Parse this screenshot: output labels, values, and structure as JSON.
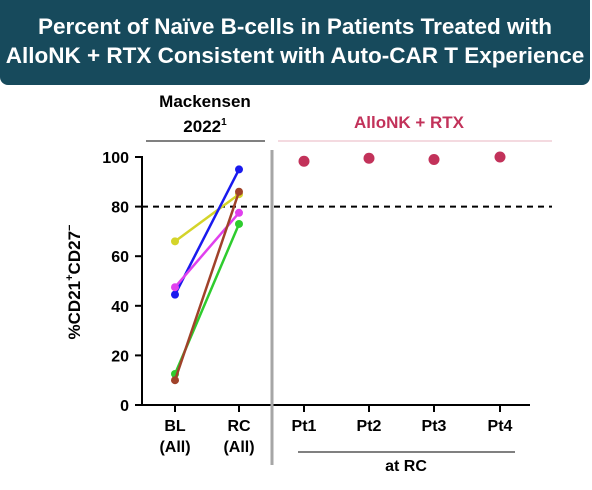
{
  "title": {
    "line1": "Percent of Naïve B-cells in Patients Treated with",
    "line2": "AlloNK + RTX Consistent with Auto-CAR T Experience"
  },
  "colors": {
    "banner": "#174a5c",
    "allonk": "#c2325a",
    "allonk_divider": "#e8b4c2",
    "separator": "#a6a6a6"
  },
  "chart_data": {
    "type": "scatter",
    "ylabel": {
      "prefix": "%CD21",
      "sup1": "+",
      "mid": "CD27",
      "sup2": "−"
    },
    "ylim": [
      0,
      100
    ],
    "yticks": [
      "0",
      "20",
      "40",
      "60",
      "80",
      "100"
    ],
    "reference_line": 80,
    "left_panel": {
      "header_line1": "Mackensen",
      "header_year": "2022",
      "header_sup": "1",
      "categories": [
        {
          "line1": "BL",
          "line2": "(All)"
        },
        {
          "line1": "RC",
          "line2": "(All)"
        }
      ],
      "series": [
        {
          "color": "#d4d42a",
          "values": [
            66,
            85
          ]
        },
        {
          "color": "#1a1aee",
          "values": [
            44.5,
            95
          ]
        },
        {
          "color": "#e040ee",
          "values": [
            47.5,
            77.5
          ]
        },
        {
          "color": "#2ecc2e",
          "values": [
            12.5,
            73
          ]
        },
        {
          "color": "#a0422a",
          "values": [
            10,
            86
          ]
        }
      ]
    },
    "right_panel": {
      "header": "AlloNK + RTX",
      "categories": [
        "Pt1",
        "Pt2",
        "Pt3",
        "Pt4"
      ],
      "values": [
        98.3,
        99.5,
        99,
        100
      ],
      "group_label": "at RC"
    }
  }
}
